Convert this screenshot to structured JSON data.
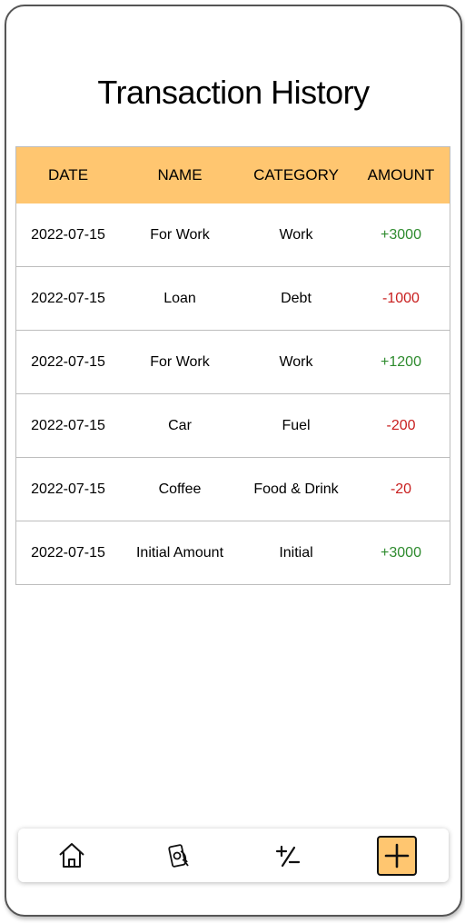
{
  "page": {
    "title": "Transaction History"
  },
  "table": {
    "headers": [
      "DATE",
      "NAME",
      "CATEGORY",
      "AMOUNT"
    ],
    "header_bg": "#ffc670",
    "rows": [
      {
        "date": "2022-07-15",
        "name": "For Work",
        "category": "Work",
        "amount": "+3000",
        "type": "income"
      },
      {
        "date": "2022-07-15",
        "name": "Loan",
        "category": "Debt",
        "amount": "-1000",
        "type": "expense"
      },
      {
        "date": "2022-07-15",
        "name": "For Work",
        "category": "Work",
        "amount": "+1200",
        "type": "income"
      },
      {
        "date": "2022-07-15",
        "name": "Car",
        "category": "Fuel",
        "amount": "-200",
        "type": "expense"
      },
      {
        "date": "2022-07-15",
        "name": "Coffee",
        "category": "Food & Drink",
        "amount": "-20",
        "type": "expense"
      },
      {
        "date": "2022-07-15",
        "name": "Initial Amount",
        "category": "Initial",
        "amount": "+3000",
        "type": "income"
      }
    ]
  },
  "colors": {
    "income": "#2e8b2e",
    "expense": "#c81e1e",
    "accent": "#ffc670"
  },
  "nav": {
    "items": [
      {
        "icon": "home-icon",
        "active": false
      },
      {
        "icon": "money-hand-icon",
        "active": false
      },
      {
        "icon": "plus-minus-icon",
        "active": false
      },
      {
        "icon": "add-icon",
        "active": true
      }
    ]
  }
}
